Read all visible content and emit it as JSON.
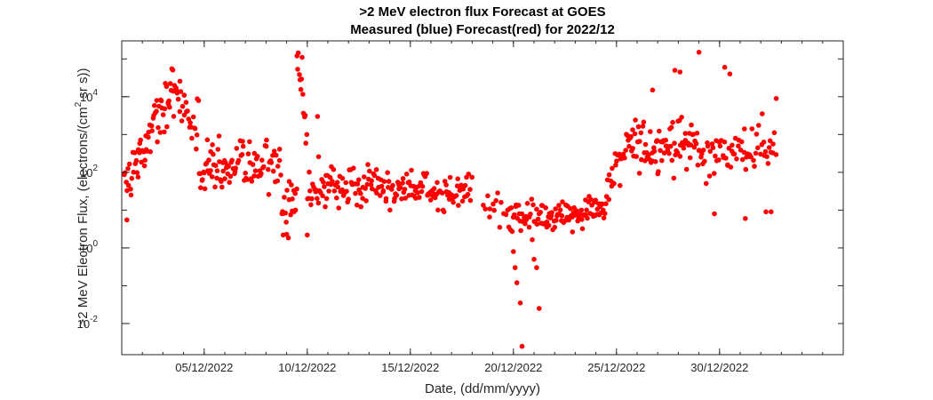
{
  "chart_data": {
    "type": "scatter",
    "title": ">2 MeV electron flux Forecast at GOES",
    "subtitle": "Measured (blue) Forecast(red) for 2022/12",
    "xlabel": "Date, (dd/mm/yyyy)",
    "ylabel_parts": [
      ">2 MeV Electron Flux, (electrons/(cm",
      "2",
      " sr s))"
    ],
    "xlim": [
      "2022-12-01",
      "2023-01-05"
    ],
    "ylim": [
      0.0015,
      300000
    ],
    "y_scale": "log",
    "x_ticks": [
      {
        "date": "2022-12-05",
        "label": "05/12/2022"
      },
      {
        "date": "2022-12-10",
        "label": "10/12/2022"
      },
      {
        "date": "2022-12-15",
        "label": "15/12/2022"
      },
      {
        "date": "2022-12-20",
        "label": "20/12/2022"
      },
      {
        "date": "2022-12-25",
        "label": "25/12/2022"
      },
      {
        "date": "2022-12-30",
        "label": "30/12/2022"
      }
    ],
    "y_ticks": [
      {
        "value": 0.01,
        "base": "10",
        "exp": "-2"
      },
      {
        "value": 1,
        "base": "10",
        "exp": "0"
      },
      {
        "value": 100,
        "base": "10",
        "exp": "2"
      },
      {
        "value": 10000,
        "base": "10",
        "exp": "4"
      }
    ],
    "grid": false,
    "series": [
      {
        "color": "#ff0000",
        "segments": [
          {
            "start": "2022-12-01T00:00",
            "end": "2022-12-01T21:00",
            "from": 30,
            "to": 300,
            "spread": 0.5,
            "n": 22
          },
          {
            "start": "2022-12-01T21:00",
            "end": "2022-12-03T10:00",
            "from": 300,
            "to": 15000,
            "spread": 0.45,
            "n": 40
          },
          {
            "start": "2022-12-03T10:00",
            "end": "2022-12-04T18:00",
            "from": 15000,
            "to": 2000,
            "spread": 0.5,
            "n": 30
          },
          {
            "start": "2022-12-04T18:00",
            "end": "2022-12-06T06:00",
            "from": 200,
            "to": 80,
            "spread": 0.5,
            "n": 40
          },
          {
            "start": "2022-12-06T06:00",
            "end": "2022-12-08T18:00",
            "from": 150,
            "to": 200,
            "spread": 0.5,
            "n": 55
          },
          {
            "start": "2022-12-08T18:00",
            "end": "2022-12-09T12:00",
            "from": 8,
            "to": 20,
            "spread": 0.5,
            "n": 20
          },
          {
            "start": "2022-12-09T12:00",
            "end": "2022-12-10T00:00",
            "from": 100000,
            "to": 1000,
            "spread": 0.4,
            "n": 12
          },
          {
            "start": "2022-12-10T00:00",
            "end": "2022-12-11T06:00",
            "from": 30,
            "to": 50,
            "spread": 0.45,
            "n": 30
          },
          {
            "start": "2022-12-11T06:00",
            "end": "2022-12-18T00:00",
            "from": 40,
            "to": 30,
            "spread": 0.35,
            "n": 150
          },
          {
            "start": "2022-12-18T12:00",
            "end": "2022-12-19T18:00",
            "from": 20,
            "to": 8,
            "spread": 0.3,
            "n": 14
          },
          {
            "start": "2022-12-19T18:00",
            "end": "2022-12-21T12:00",
            "from": 6,
            "to": 5,
            "spread": 0.45,
            "n": 38
          },
          {
            "start": "2022-12-21T12:00",
            "end": "2022-12-24T12:00",
            "from": 6,
            "to": 12,
            "spread": 0.3,
            "n": 75
          },
          {
            "start": "2022-12-24T12:00",
            "end": "2022-12-25T12:00",
            "from": 30,
            "to": 400,
            "spread": 0.4,
            "n": 22
          },
          {
            "start": "2022-12-25T12:00",
            "end": "2022-12-29T00:00",
            "from": 500,
            "to": 600,
            "spread": 0.5,
            "n": 85
          },
          {
            "start": "2022-12-29T00:00",
            "end": "2023-01-01T18:00",
            "from": 250,
            "to": 500,
            "spread": 0.45,
            "n": 70
          }
        ],
        "extra_points": [
          [
            "2022-12-01T06:00",
            5.5
          ],
          [
            "2022-12-03T12:00",
            14000
          ],
          [
            "2022-12-03T06:00",
            7000
          ],
          [
            "2022-12-09T00:00",
            2.3
          ],
          [
            "2022-12-08T20:00",
            2.2
          ],
          [
            "2022-12-09T12:00",
            120000
          ],
          [
            "2022-12-09T18:00",
            110000
          ],
          [
            "2022-12-10T00:00",
            2.2
          ],
          [
            "2022-12-10T12:00",
            3000
          ],
          [
            "2022-12-20T00:00",
            0.8
          ],
          [
            "2022-12-20T02:00",
            0.3
          ],
          [
            "2022-12-20T04:00",
            0.12
          ],
          [
            "2022-12-20T08:00",
            0.035
          ],
          [
            "2022-12-20T10:00",
            0.0025
          ],
          [
            "2022-12-21T00:00",
            0.5
          ],
          [
            "2022-12-21T03:00",
            0.3
          ],
          [
            "2022-12-21T06:00",
            0.025
          ],
          [
            "2022-12-26T18:00",
            15000
          ],
          [
            "2022-12-27T20:00",
            50000
          ],
          [
            "2022-12-28T02:00",
            45000
          ],
          [
            "2022-12-29T00:00",
            150000
          ],
          [
            "2022-12-29T18:00",
            8
          ],
          [
            "2022-12-30T06:00",
            60000
          ],
          [
            "2022-12-30T12:00",
            40000
          ],
          [
            "2022-12-31T06:00",
            6
          ],
          [
            "2023-01-01T06:00",
            9
          ],
          [
            "2023-01-01T12:00",
            9
          ],
          [
            "2023-01-01T18:00",
            9000
          ]
        ]
      }
    ]
  }
}
